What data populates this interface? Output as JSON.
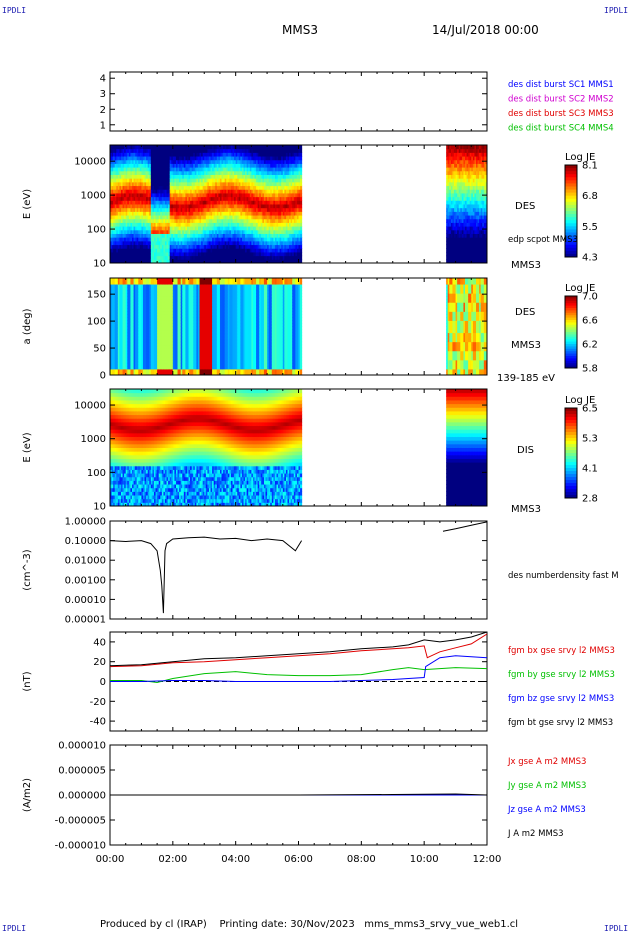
{
  "corners": {
    "tl": "IPDLI",
    "tr": "IPDLI",
    "bl": "IPDLI",
    "br": "IPDLI"
  },
  "header": {
    "title": "MMS3",
    "date": "14/Jul/2018 00:00"
  },
  "footer": {
    "produced": "Produced by cl (IRAP)",
    "printed": "Printing date: 30/Nov/2023",
    "file": "mms_mms3_srvy_vue_web1.cl"
  },
  "colors": {
    "sc1": "#0000ff",
    "sc2": "#d000d0",
    "sc3": "#e00000",
    "sc4": "#00c000",
    "black": "#000000"
  },
  "chart_data": [
    {
      "type": "scatter",
      "id": "availability",
      "y_ticks": [
        "1",
        "2",
        "3",
        "4"
      ],
      "ylim": [
        0.6,
        4.4
      ],
      "legend": [
        {
          "name": "des dist burst SC1 MMS1",
          "color": "#0000ff"
        },
        {
          "name": "des dist burst SC2 MMS2",
          "color": "#d000d0"
        },
        {
          "name": "des dist burst SC3 MMS3",
          "color": "#e00000"
        },
        {
          "name": "des dist burst SC4 MMS4",
          "color": "#00c000"
        }
      ]
    },
    {
      "type": "heatmap",
      "id": "des-energy",
      "ylabel": "E (eV)",
      "y_scale": "log",
      "ylim": [
        10,
        30000
      ],
      "y_ticks": [
        "10",
        "100",
        "1000",
        "10000"
      ],
      "data_intervals_hours": [
        [
          0,
          6.1
        ],
        [
          10.7,
          12
        ]
      ],
      "colorbar": {
        "title": "Log JE",
        "ticks": [
          "8.1",
          "6.8",
          "5.5",
          "4.3"
        ],
        "range": [
          4.3,
          8.1
        ]
      },
      "labels": [
        "DES",
        "edp scpot MMS3",
        "MMS3"
      ]
    },
    {
      "type": "heatmap",
      "id": "des-pitch",
      "ylabel": "a (deg)",
      "ylim": [
        0,
        180
      ],
      "y_ticks": [
        "0",
        "50",
        "100",
        "150"
      ],
      "data_intervals_hours": [
        [
          0,
          6.1
        ],
        [
          10.7,
          12
        ]
      ],
      "colorbar": {
        "title": "Log JE",
        "ticks": [
          "7.0",
          "6.6",
          "6.2",
          "5.8"
        ],
        "range": [
          5.8,
          7.0
        ]
      },
      "labels": [
        "DES",
        "MMS3",
        "139-185 eV"
      ]
    },
    {
      "type": "heatmap",
      "id": "dis-energy",
      "ylabel": "E (eV)",
      "y_scale": "log",
      "ylim": [
        10,
        30000
      ],
      "y_ticks": [
        "10",
        "100",
        "1000",
        "10000"
      ],
      "data_intervals_hours": [
        [
          0,
          6.1
        ],
        [
          10.7,
          12
        ]
      ],
      "colorbar": {
        "title": "Log JE",
        "ticks": [
          "6.5",
          "5.3",
          "4.1",
          "2.8"
        ],
        "range": [
          2.8,
          6.5
        ]
      },
      "labels": [
        "DIS",
        "MMS3"
      ]
    },
    {
      "type": "line",
      "id": "density",
      "ylabel": "(cm^-3)",
      "y_scale": "log",
      "ylim": [
        1e-05,
        1.0
      ],
      "y_ticks": [
        "1.00000",
        "0.10000",
        "0.01000",
        "0.00100",
        "0.00010",
        "0.00001"
      ],
      "series": [
        {
          "name": "des numberdensity fast M",
          "color": "#000000",
          "x": [
            0,
            0.5,
            1.0,
            1.3,
            1.5,
            1.6,
            1.65,
            1.7,
            1.75,
            1.8,
            2.0,
            2.5,
            3.0,
            3.5,
            4.0,
            4.5,
            5.0,
            5.5,
            5.9,
            6.1,
            10.6,
            11.0,
            11.5,
            12.0
          ],
          "y": [
            0.1,
            0.09,
            0.1,
            0.07,
            0.03,
            0.003,
            0.0005,
            2e-05,
            0.03,
            0.07,
            0.12,
            0.14,
            0.15,
            0.12,
            0.13,
            0.1,
            0.12,
            0.1,
            0.03,
            0.1,
            0.3,
            0.4,
            0.6,
            0.9
          ]
        }
      ]
    },
    {
      "type": "line",
      "id": "magnetic-field",
      "ylabel": "(nT)",
      "ylim": [
        -50,
        50
      ],
      "y_ticks": [
        "40",
        "20",
        "0",
        "-20",
        "-40"
      ],
      "series": [
        {
          "name": "fgm bx gse srvy l2 MMS3",
          "color": "#e00000",
          "x": [
            0,
            1,
            2,
            3,
            4,
            5,
            6,
            7,
            8,
            9,
            9.5,
            10,
            10.1,
            10.5,
            11,
            11.5,
            12
          ],
          "y": [
            15,
            16,
            19,
            20,
            22,
            24,
            26,
            28,
            31,
            33,
            34,
            36,
            24,
            30,
            34,
            38,
            48
          ]
        },
        {
          "name": "fgm by gse srvy l2 MMS3",
          "color": "#00c000",
          "x": [
            0,
            1,
            1.5,
            2,
            3,
            4,
            5,
            6,
            7,
            8,
            9,
            9.5,
            10,
            10.5,
            11,
            12
          ],
          "y": [
            1,
            1,
            -1,
            3,
            8,
            10,
            7,
            6,
            6,
            7,
            12,
            14,
            12,
            13,
            14,
            13
          ]
        },
        {
          "name": "fgm bz gse srvy l2 MMS3",
          "color": "#0000ff",
          "x": [
            0,
            1,
            2,
            3,
            4,
            5,
            6,
            7,
            8,
            9,
            9.5,
            10,
            10.05,
            10.5,
            11,
            12
          ],
          "y": [
            0,
            0,
            1,
            1,
            0,
            0,
            0,
            0,
            1,
            2,
            3,
            4,
            15,
            24,
            26,
            24
          ]
        },
        {
          "name": "fgm bt gse srvy l2 MMS3",
          "color": "#000000",
          "x": [
            0,
            1,
            2,
            3,
            4,
            5,
            6,
            7,
            8,
            9,
            9.5,
            10,
            10.5,
            11,
            11.5,
            12
          ],
          "y": [
            16,
            17,
            20,
            23,
            24,
            26,
            28,
            30,
            33,
            35,
            37,
            42,
            40,
            42,
            45,
            50
          ]
        }
      ],
      "reference_line": {
        "y": 0,
        "style": "dashed"
      }
    },
    {
      "type": "line",
      "id": "current-density",
      "ylabel": "(A/m2)",
      "ylim": [
        -1e-05,
        1e-05
      ],
      "y_ticks": [
        "0.000010",
        "0.000005",
        "0.000000",
        "-0.000005",
        "-0.000010"
      ],
      "series": [
        {
          "name": "Jx gse A m2 MMS3",
          "color": "#e00000",
          "x": [
            0,
            12
          ],
          "y": [
            0,
            0
          ]
        },
        {
          "name": "Jy gse A m2 MMS3",
          "color": "#00c000",
          "x": [
            0,
            12
          ],
          "y": [
            0,
            0
          ]
        },
        {
          "name": "Jz gse A m2 MMS3",
          "color": "#0000ff",
          "x": [
            0,
            12
          ],
          "y": [
            0,
            0
          ]
        },
        {
          "name": "J A m2 MMS3",
          "color": "#000000",
          "x": [
            0,
            6,
            9,
            11,
            12
          ],
          "y": [
            0,
            0,
            1e-07,
            2e-07,
            0
          ]
        }
      ]
    }
  ],
  "time_axis": {
    "ticks": [
      "00:00",
      "02:00",
      "04:00",
      "06:00",
      "08:00",
      "10:00",
      "12:00"
    ],
    "range_hours": [
      0,
      12
    ]
  }
}
